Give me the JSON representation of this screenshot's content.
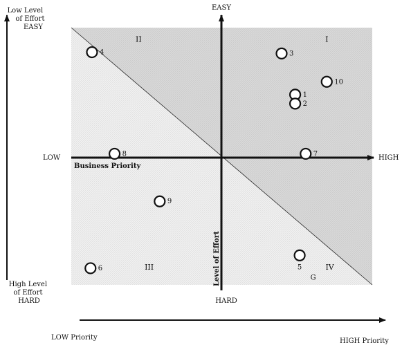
{
  "chart_data": {
    "type": "scatter",
    "title": "",
    "xlabel": "Business Priority",
    "ylabel": "Level of Effort",
    "x_axis": {
      "left": "LOW",
      "right": "HIGH"
    },
    "y_axis": {
      "top": "EASY",
      "bottom": "HARD"
    },
    "xlim": [
      -10,
      10
    ],
    "ylim": [
      -10,
      10
    ],
    "grid": false,
    "left_arrow": {
      "top_label": [
        "Low Level",
        "of Effort",
        "EASY"
      ],
      "bottom_label": [
        "High Level",
        "of Effort",
        "HARD"
      ]
    },
    "bottom_arrow": {
      "left_label": "LOW Priority",
      "right_label": "HIGH Priority"
    },
    "quadrants": [
      {
        "label": "I",
        "x": 7,
        "y": 9
      },
      {
        "label": "II",
        "x": -5.5,
        "y": 9
      },
      {
        "label": "III",
        "x": -4.8,
        "y": -8.7
      },
      {
        "label": "IV",
        "x": 7.2,
        "y": -8.7
      }
    ],
    "extra_label": {
      "text": "G",
      "x": 6.1,
      "y": -9.5
    },
    "points": [
      {
        "label": "1",
        "x": 4.9,
        "y": 4.9
      },
      {
        "label": "2",
        "x": 4.9,
        "y": 4.2
      },
      {
        "label": "3",
        "x": 4.0,
        "y": 8.1
      },
      {
        "label": "4",
        "x": -8.6,
        "y": 8.2
      },
      {
        "label": "5",
        "x": 5.2,
        "y": -7.6
      },
      {
        "label": "6",
        "x": -8.7,
        "y": -8.6
      },
      {
        "label": "7",
        "x": 5.6,
        "y": 0.3
      },
      {
        "label": "8",
        "x": -7.1,
        "y": 0.3
      },
      {
        "label": "9",
        "x": -4.1,
        "y": -3.4
      },
      {
        "label": "10",
        "x": 7.0,
        "y": 5.9
      }
    ]
  }
}
